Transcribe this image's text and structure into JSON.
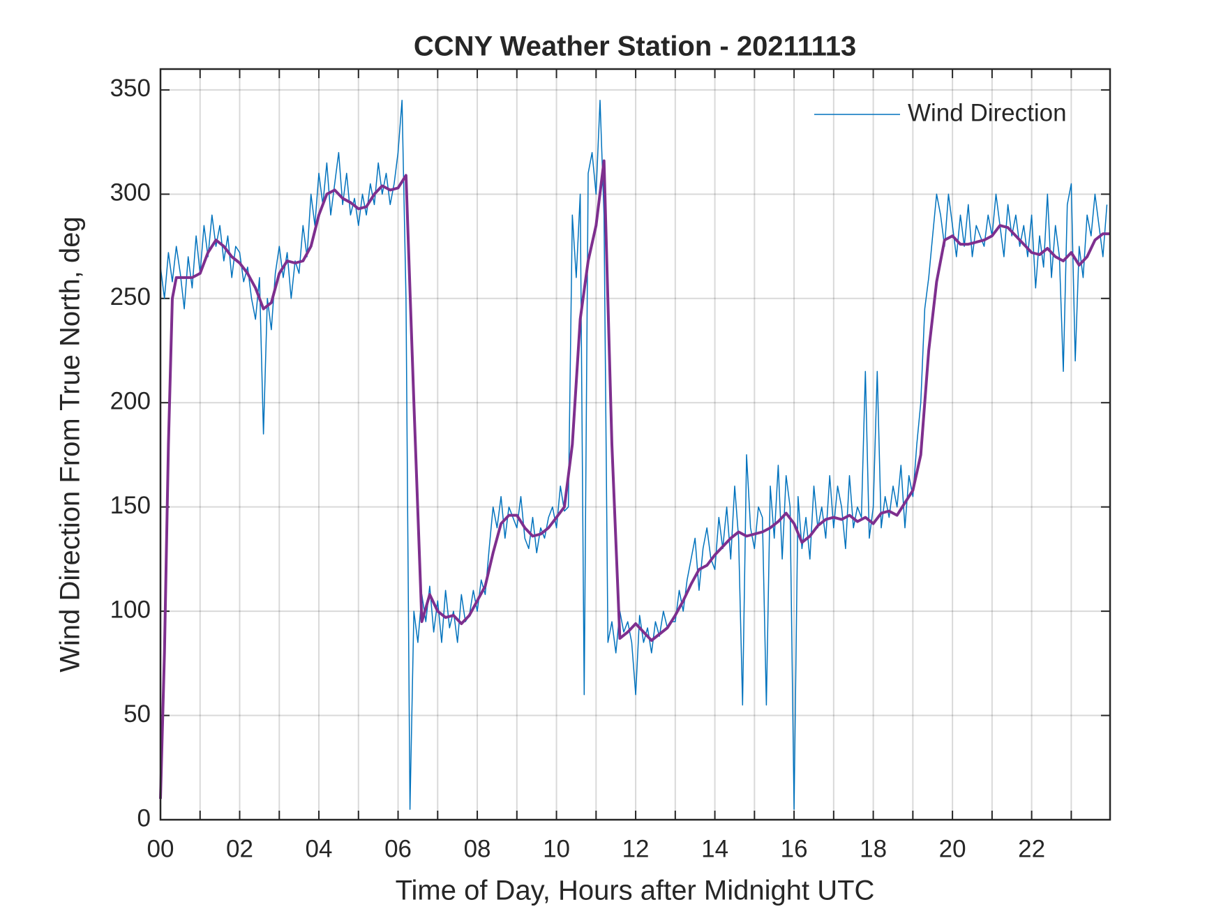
{
  "chart_data": {
    "type": "line",
    "title": "CCNY Weather Station - 20211113",
    "xlabel": "Time of Day, Hours after Midnight UTC",
    "ylabel": "Wind Direction From True North, deg",
    "xlim": [
      0,
      23.98
    ],
    "ylim": [
      0,
      360
    ],
    "xticks": [
      {
        "value": 0,
        "label": "00"
      },
      {
        "value": 2,
        "label": "02"
      },
      {
        "value": 4,
        "label": "04"
      },
      {
        "value": 6,
        "label": "06"
      },
      {
        "value": 8,
        "label": "08"
      },
      {
        "value": 10,
        "label": "10"
      },
      {
        "value": 12,
        "label": "12"
      },
      {
        "value": 14,
        "label": "14"
      },
      {
        "value": 16,
        "label": "16"
      },
      {
        "value": 18,
        "label": "18"
      },
      {
        "value": 20,
        "label": "20"
      },
      {
        "value": 22,
        "label": "22"
      }
    ],
    "xgrid_minor": [
      1,
      3,
      5,
      7,
      9,
      11,
      13,
      15,
      17,
      19,
      21,
      23
    ],
    "yticks": [
      0,
      50,
      100,
      150,
      200,
      250,
      300,
      350
    ],
    "grid": true,
    "legend": "top-right",
    "series": [
      {
        "name": "Wind Direction",
        "color": "#0072bd",
        "width": 1.5,
        "x": [
          0,
          0.1,
          0.2,
          0.3,
          0.4,
          0.5,
          0.6,
          0.7,
          0.8,
          0.9,
          1,
          1.1,
          1.2,
          1.3,
          1.4,
          1.5,
          1.6,
          1.7,
          1.8,
          1.9,
          2,
          2.1,
          2.2,
          2.3,
          2.4,
          2.5,
          2.6,
          2.7,
          2.8,
          2.9,
          3,
          3.1,
          3.2,
          3.3,
          3.4,
          3.5,
          3.6,
          3.7,
          3.8,
          3.9,
          4,
          4.1,
          4.2,
          4.3,
          4.4,
          4.5,
          4.6,
          4.7,
          4.8,
          4.9,
          5,
          5.1,
          5.2,
          5.3,
          5.4,
          5.5,
          5.6,
          5.7,
          5.8,
          5.9,
          6,
          6.1,
          6.2,
          6.3,
          6.4,
          6.5,
          6.6,
          6.7,
          6.8,
          6.9,
          7,
          7.1,
          7.2,
          7.3,
          7.4,
          7.5,
          7.6,
          7.7,
          7.8,
          7.9,
          8,
          8.1,
          8.2,
          8.3,
          8.4,
          8.5,
          8.6,
          8.7,
          8.8,
          8.9,
          9,
          9.1,
          9.2,
          9.3,
          9.4,
          9.5,
          9.6,
          9.7,
          9.8,
          9.9,
          10,
          10.1,
          10.2,
          10.3,
          10.4,
          10.5,
          10.6,
          10.7,
          10.8,
          10.9,
          11,
          11.1,
          11.2,
          11.3,
          11.4,
          11.5,
          11.6,
          11.7,
          11.8,
          11.9,
          12,
          12.1,
          12.2,
          12.3,
          12.4,
          12.5,
          12.6,
          12.7,
          12.8,
          12.9,
          13,
          13.1,
          13.2,
          13.3,
          13.4,
          13.5,
          13.6,
          13.7,
          13.8,
          13.9,
          14,
          14.1,
          14.2,
          14.3,
          14.4,
          14.5,
          14.6,
          14.7,
          14.8,
          14.9,
          15,
          15.1,
          15.2,
          15.3,
          15.4,
          15.5,
          15.6,
          15.7,
          15.8,
          15.9,
          16,
          16.1,
          16.2,
          16.3,
          16.4,
          16.5,
          16.6,
          16.7,
          16.8,
          16.9,
          17,
          17.1,
          17.2,
          17.3,
          17.4,
          17.5,
          17.6,
          17.7,
          17.8,
          17.9,
          18,
          18.1,
          18.2,
          18.3,
          18.4,
          18.5,
          18.6,
          18.7,
          18.8,
          18.9,
          19,
          19.1,
          19.2,
          19.3,
          19.4,
          19.5,
          19.6,
          19.7,
          19.8,
          19.9,
          20,
          20.1,
          20.2,
          20.3,
          20.4,
          20.5,
          20.6,
          20.7,
          20.8,
          20.9,
          21,
          21.1,
          21.2,
          21.3,
          21.4,
          21.5,
          21.6,
          21.7,
          21.8,
          21.9,
          22,
          22.1,
          22.2,
          22.3,
          22.4,
          22.5,
          22.6,
          22.7,
          22.8,
          22.9,
          23,
          23.1,
          23.2,
          23.3,
          23.4,
          23.5,
          23.6,
          23.7,
          23.8,
          23.9
        ],
        "values": [
          265,
          250,
          272,
          258,
          275,
          262,
          245,
          270,
          255,
          280,
          262,
          285,
          270,
          290,
          275,
          285,
          268,
          280,
          260,
          275,
          272,
          258,
          265,
          250,
          240,
          260,
          185,
          250,
          235,
          262,
          275,
          260,
          272,
          250,
          268,
          262,
          285,
          270,
          300,
          285,
          310,
          295,
          315,
          290,
          305,
          320,
          295,
          310,
          290,
          298,
          285,
          300,
          290,
          305,
          295,
          315,
          300,
          310,
          295,
          305,
          320,
          345,
          250,
          5,
          100,
          85,
          108,
          95,
          112,
          90,
          105,
          85,
          110,
          92,
          100,
          85,
          108,
          95,
          98,
          110,
          100,
          115,
          108,
          130,
          150,
          140,
          155,
          135,
          150,
          145,
          140,
          155,
          135,
          130,
          145,
          128,
          140,
          135,
          145,
          150,
          140,
          160,
          148,
          150,
          290,
          260,
          300,
          60,
          310,
          320,
          300,
          345,
          290,
          85,
          95,
          80,
          100,
          90,
          95,
          85,
          60,
          98,
          85,
          92,
          80,
          95,
          88,
          100,
          92,
          95,
          95,
          110,
          100,
          115,
          125,
          135,
          110,
          130,
          140,
          125,
          120,
          145,
          130,
          150,
          125,
          160,
          135,
          55,
          175,
          140,
          130,
          150,
          145,
          55,
          160,
          135,
          170,
          125,
          165,
          150,
          5,
          155,
          130,
          145,
          125,
          160,
          140,
          150,
          135,
          165,
          140,
          160,
          150,
          130,
          165,
          140,
          150,
          145,
          215,
          135,
          150,
          215,
          140,
          155,
          145,
          160,
          150,
          170,
          140,
          165,
          155,
          180,
          200,
          245,
          260,
          280,
          300,
          290,
          275,
          300,
          285,
          270,
          290,
          275,
          295,
          270,
          285,
          280,
          275,
          290,
          280,
          300,
          285,
          270,
          295,
          280,
          290,
          275,
          285,
          270,
          290,
          255,
          280,
          265,
          300,
          260,
          285,
          270,
          215,
          295,
          305,
          220,
          275,
          260,
          290,
          280,
          300,
          285,
          270,
          295
        ]
      },
      {
        "color": "#7e2f8e",
        "width": 4,
        "x": [
          0,
          0.1,
          0.2,
          0.3,
          0.4,
          0.6,
          0.8,
          1,
          1.2,
          1.4,
          1.6,
          1.8,
          2,
          2.2,
          2.4,
          2.6,
          2.8,
          3,
          3.2,
          3.4,
          3.6,
          3.8,
          4,
          4.2,
          4.4,
          4.6,
          4.8,
          5,
          5.2,
          5.4,
          5.6,
          5.8,
          6,
          6.2,
          6.4,
          6.6,
          6.8,
          7,
          7.2,
          7.4,
          7.6,
          7.8,
          8,
          8.2,
          8.4,
          8.6,
          8.8,
          9,
          9.2,
          9.4,
          9.6,
          9.8,
          10,
          10.2,
          10.4,
          10.6,
          10.8,
          11,
          11.2,
          11.4,
          11.6,
          11.8,
          12,
          12.2,
          12.4,
          12.6,
          12.8,
          13,
          13.2,
          13.4,
          13.6,
          13.8,
          14,
          14.2,
          14.4,
          14.6,
          14.8,
          15,
          15.2,
          15.4,
          15.6,
          15.8,
          16,
          16.2,
          16.4,
          16.6,
          16.8,
          17,
          17.2,
          17.4,
          17.6,
          17.8,
          18,
          18.2,
          18.4,
          18.6,
          18.8,
          19,
          19.2,
          19.4,
          19.6,
          19.8,
          20,
          20.2,
          20.4,
          20.6,
          20.8,
          21,
          21.2,
          21.4,
          21.6,
          21.8,
          22,
          22.2,
          22.4,
          22.6,
          22.8,
          23,
          23.2,
          23.4,
          23.6,
          23.8,
          23.98
        ],
        "values": [
          10,
          80,
          180,
          250,
          260,
          260,
          260,
          262,
          272,
          278,
          275,
          270,
          267,
          262,
          255,
          245,
          248,
          262,
          268,
          267,
          268,
          275,
          290,
          300,
          302,
          298,
          296,
          293,
          294,
          300,
          304,
          302,
          303,
          309,
          200,
          95,
          108,
          100,
          97,
          98,
          94,
          98,
          105,
          112,
          128,
          142,
          146,
          146,
          140,
          136,
          137,
          140,
          145,
          150,
          180,
          240,
          268,
          285,
          316,
          180,
          87,
          90,
          94,
          90,
          86,
          89,
          92,
          98,
          105,
          113,
          120,
          122,
          127,
          131,
          135,
          138,
          136,
          137,
          138,
          140,
          143,
          147,
          142,
          133,
          136,
          141,
          144,
          145,
          144,
          146,
          143,
          145,
          142,
          147,
          148,
          146,
          152,
          158,
          175,
          225,
          258,
          278,
          280,
          276,
          276,
          277,
          278,
          280,
          285,
          284,
          280,
          276,
          272,
          271,
          274,
          270,
          268,
          272,
          266,
          270,
          278,
          281,
          281
        ]
      }
    ]
  }
}
